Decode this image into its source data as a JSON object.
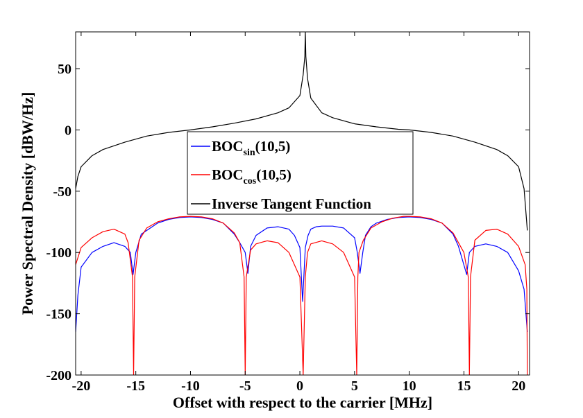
{
  "chart_data": {
    "type": "line",
    "title": "",
    "xlabel": "Offset with respect to the carrier [MHz]",
    "ylabel": "Power Spectral Density [dBW/Hz]",
    "xlim": [
      -20.5,
      21
    ],
    "ylim": [
      -200,
      80
    ],
    "xticks": [
      -20,
      -15,
      -10,
      -5,
      0,
      5,
      10,
      15,
      20
    ],
    "yticks": [
      50,
      0,
      -50,
      -100,
      -150,
      -200
    ],
    "grid": false,
    "legend_position": "center",
    "series": [
      {
        "name": "BOCsin(10,5)",
        "legend_main": "BOC",
        "legend_sub": "sin",
        "legend_tail": "(10,5)",
        "color": "#0000ff",
        "x": [
          -20.5,
          -20.3,
          -20.0,
          -19.0,
          -18.0,
          -17.0,
          -16.0,
          -15.5,
          -15.25,
          -15.0,
          -14.5,
          -13.0,
          -12.0,
          -11.0,
          -10.0,
          -9.0,
          -8.0,
          -7.0,
          -6.0,
          -5.5,
          -5.0,
          -4.75,
          -4.5,
          -4.0,
          -3.0,
          -2.0,
          -1.0,
          -0.5,
          0.0,
          0.25,
          0.5,
          0.75,
          1.0,
          1.5,
          2.0,
          3.0,
          4.0,
          5.0,
          5.25,
          5.5,
          5.75,
          6.0,
          6.5,
          7.0,
          8.0,
          9.0,
          10.0,
          11.0,
          12.0,
          13.0,
          14.0,
          14.5,
          15.25,
          15.5,
          16.0,
          17.0,
          18.0,
          19.0,
          20.0,
          20.5,
          20.8
        ],
        "y": [
          -165,
          -135,
          -112,
          -100,
          -95,
          -92,
          -95,
          -100,
          -118,
          -100,
          -85,
          -76,
          -73,
          -71.5,
          -71,
          -71.5,
          -73,
          -76,
          -85,
          -92,
          -100,
          -117,
          -95,
          -86,
          -80,
          -79,
          -81,
          -86,
          -96,
          -140,
          -96,
          -86,
          -81,
          -79,
          -78.5,
          -78.5,
          -80,
          -88,
          -100,
          -117,
          -100,
          -86,
          -79,
          -76,
          -73,
          -71.5,
          -71,
          -71.5,
          -73,
          -76,
          -85,
          -95,
          -118,
          -100,
          -95,
          -93,
          -95,
          -100,
          -115,
          -130,
          -165
        ]
      },
      {
        "name": "BOCcos(10,5)",
        "legend_main": "BOC",
        "legend_sub": "cos",
        "legend_tail": "(10,5)",
        "color": "#ff0000",
        "x": [
          -20.5,
          -20.0,
          -19.0,
          -18.0,
          -17.0,
          -16.0,
          -15.7,
          -15.3,
          -15.2,
          -15.1,
          -14.7,
          -14.0,
          -13.0,
          -12.0,
          -11.0,
          -10.0,
          -9.0,
          -8.0,
          -7.0,
          -6.0,
          -5.5,
          -5.1,
          -5.0,
          -4.9,
          -4.5,
          -4.0,
          -3.0,
          -2.0,
          -1.0,
          0.0,
          0.3,
          0.5,
          0.7,
          1.0,
          2.0,
          3.0,
          4.0,
          5.0,
          5.2,
          5.3,
          5.4,
          5.8,
          6.5,
          7.5,
          8.5,
          9.5,
          10.0,
          11.0,
          12.0,
          13.0,
          14.0,
          15.0,
          15.4,
          15.5,
          15.6,
          16.0,
          17.0,
          18.0,
          19.0,
          20.0,
          20.6,
          20.75,
          20.8
        ],
        "y": [
          -110,
          -96,
          -88,
          -83,
          -81,
          -85,
          -92,
          -120,
          -200,
          -120,
          -90,
          -80,
          -75,
          -72.5,
          -71,
          -70.5,
          -71,
          -72.5,
          -76,
          -84,
          -92,
          -120,
          -200,
          -120,
          -98,
          -93,
          -90.5,
          -92,
          -100,
          -120,
          -200,
          -120,
          -100,
          -93,
          -90.5,
          -93,
          -100,
          -120,
          -200,
          -120,
          -100,
          -90,
          -80,
          -75,
          -72,
          -70.5,
          -70.5,
          -71,
          -72.5,
          -76,
          -84,
          -100,
          -120,
          -200,
          -120,
          -90,
          -82,
          -81,
          -85,
          -95,
          -110,
          -130,
          -200
        ]
      },
      {
        "name": "Inverse Tangent Function",
        "legend_main": "Inverse Tangent Function",
        "legend_sub": "",
        "legend_tail": "",
        "color": "#000000",
        "x": [
          -20.5,
          -20.3,
          -20.0,
          -19.0,
          -18.0,
          -16.0,
          -14.0,
          -12.0,
          -10.0,
          -8.0,
          -6.0,
          -4.0,
          -2.0,
          -1.0,
          0.0,
          0.3,
          0.45,
          0.5,
          0.55,
          0.7,
          1.0,
          2.0,
          3.0,
          5.0,
          7.0,
          9.0,
          10.0,
          12.0,
          14.0,
          16.0,
          18.0,
          19.0,
          20.0,
          20.5,
          20.8
        ],
        "y": [
          -48,
          -38,
          -30,
          -21,
          -16,
          -10,
          -5,
          -2,
          0,
          2.5,
          5.5,
          9,
          14,
          18,
          28,
          45,
          60,
          80,
          60,
          42,
          26,
          14,
          10,
          5,
          2.5,
          0.5,
          0,
          -2,
          -5,
          -10,
          -16,
          -21,
          -30,
          -48,
          -82
        ]
      }
    ]
  }
}
